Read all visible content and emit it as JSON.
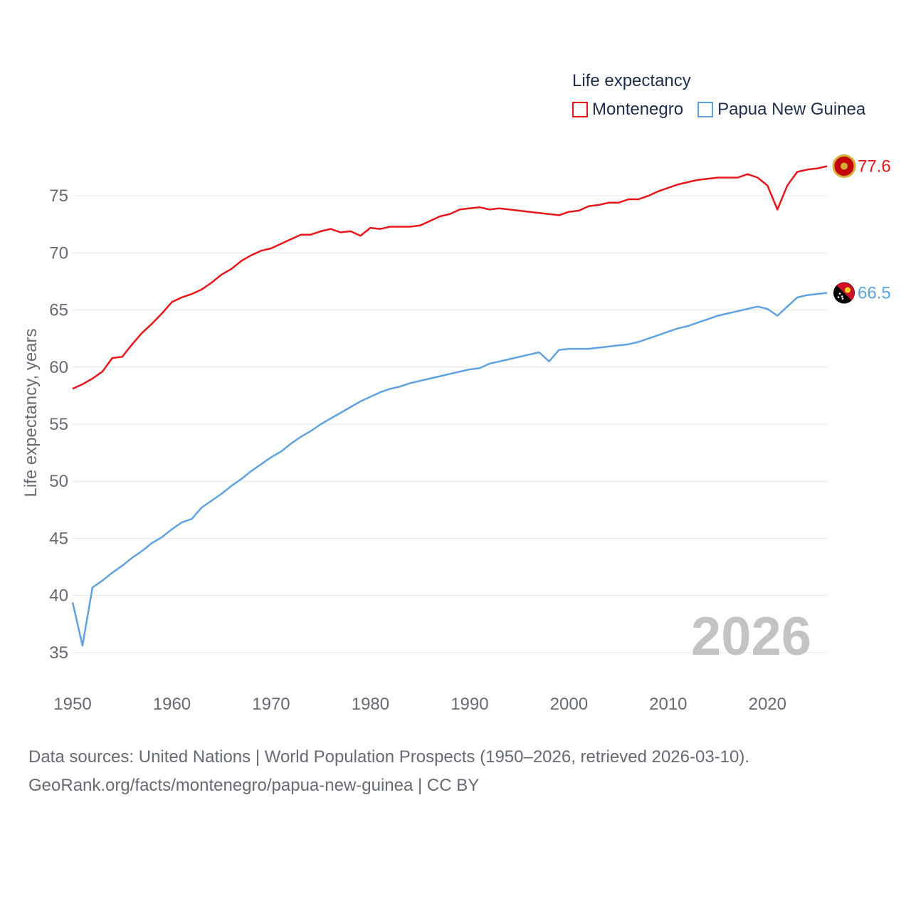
{
  "legend": {
    "title": "Life expectancy",
    "items": [
      {
        "label": "Montenegro",
        "color": "#e8161b"
      },
      {
        "label": "Papua New Guinea",
        "color": "#5ea2e0"
      }
    ]
  },
  "source": {
    "line1": "Data sources: United Nations | World Population Prospects (1950–2026, retrieved 2026-03-10).",
    "line2": "GeoRank.org/facts/montenegro/papua-new-guinea | CC BY"
  },
  "chart_data": {
    "type": "line",
    "title": "Life expectancy",
    "xlabel": "",
    "ylabel": "Life expectancy, years",
    "watermark_year": "2026",
    "xlim": [
      1950,
      2026
    ],
    "ylim": [
      32,
      79
    ],
    "xticks": [
      1950,
      1960,
      1970,
      1980,
      1990,
      2000,
      2010,
      2020
    ],
    "yticks": [
      35,
      40,
      45,
      50,
      55,
      60,
      65,
      70,
      75
    ],
    "grid": true,
    "legend_position": "top-right",
    "x": [
      1950,
      1951,
      1952,
      1953,
      1954,
      1955,
      1956,
      1957,
      1958,
      1959,
      1960,
      1961,
      1962,
      1963,
      1964,
      1965,
      1966,
      1967,
      1968,
      1969,
      1970,
      1971,
      1972,
      1973,
      1974,
      1975,
      1976,
      1977,
      1978,
      1979,
      1980,
      1981,
      1982,
      1983,
      1984,
      1985,
      1986,
      1987,
      1988,
      1989,
      1990,
      1991,
      1992,
      1993,
      1994,
      1995,
      1996,
      1997,
      1998,
      1999,
      2000,
      2001,
      2002,
      2003,
      2004,
      2005,
      2006,
      2007,
      2008,
      2009,
      2010,
      2011,
      2012,
      2013,
      2014,
      2015,
      2016,
      2017,
      2018,
      2019,
      2020,
      2021,
      2022,
      2023,
      2024,
      2025,
      2026
    ],
    "series": [
      {
        "name": "Montenegro",
        "color": "#e8161b",
        "end_label": "77.6",
        "values": [
          58.1,
          58.5,
          59.0,
          59.6,
          60.8,
          60.9,
          62.0,
          63.0,
          63.8,
          64.7,
          65.7,
          66.1,
          66.4,
          66.8,
          67.4,
          68.1,
          68.6,
          69.3,
          69.8,
          70.2,
          70.4,
          70.8,
          71.2,
          71.6,
          71.6,
          71.9,
          72.1,
          71.8,
          71.9,
          71.5,
          72.2,
          72.1,
          72.3,
          72.3,
          72.3,
          72.4,
          72.8,
          73.2,
          73.4,
          73.8,
          73.9,
          74.0,
          73.8,
          73.9,
          73.8,
          73.7,
          73.6,
          73.5,
          73.4,
          73.3,
          73.6,
          73.7,
          74.1,
          74.2,
          74.4,
          74.4,
          74.7,
          74.7,
          75.0,
          75.4,
          75.7,
          76.0,
          76.2,
          76.4,
          76.5,
          76.6,
          76.6,
          76.6,
          76.9,
          76.6,
          75.9,
          73.8,
          75.9,
          77.1,
          77.3,
          77.4,
          77.6
        ]
      },
      {
        "name": "Papua New Guinea",
        "color": "#5ea2e0",
        "end_label": "66.5",
        "values": [
          39.4,
          35.6,
          40.7,
          41.3,
          42.0,
          42.6,
          43.3,
          43.9,
          44.6,
          45.1,
          45.8,
          46.4,
          46.7,
          47.7,
          48.3,
          48.9,
          49.6,
          50.2,
          50.9,
          51.5,
          52.1,
          52.6,
          53.3,
          53.9,
          54.4,
          55.0,
          55.5,
          56.0,
          56.5,
          57.0,
          57.4,
          57.8,
          58.1,
          58.3,
          58.6,
          58.8,
          59.0,
          59.2,
          59.4,
          59.6,
          59.8,
          59.9,
          60.3,
          60.5,
          60.7,
          60.9,
          61.1,
          61.3,
          60.5,
          61.5,
          61.6,
          61.6,
          61.6,
          61.7,
          61.8,
          61.9,
          62.0,
          62.2,
          62.5,
          62.8,
          63.1,
          63.4,
          63.6,
          63.9,
          64.2,
          64.5,
          64.7,
          64.9,
          65.1,
          65.3,
          65.1,
          64.5,
          65.3,
          66.1,
          66.3,
          66.4,
          66.5
        ]
      }
    ]
  }
}
